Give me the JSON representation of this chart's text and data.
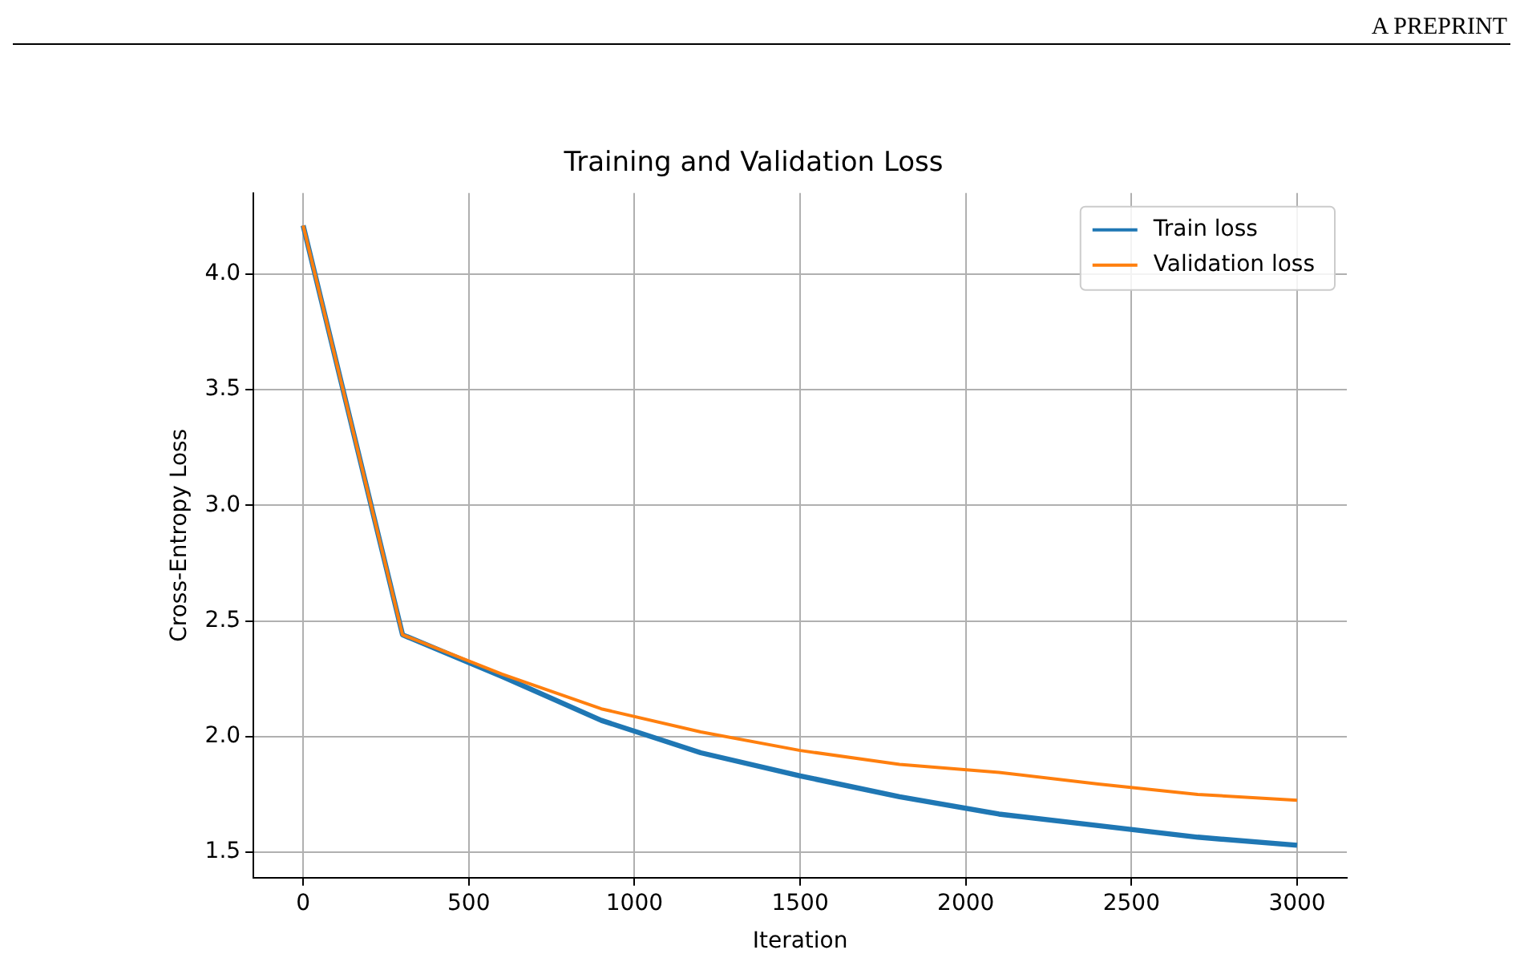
{
  "chart_data": {
    "type": "line",
    "title": "Training and Validation Loss",
    "xlabel": "Iteration",
    "ylabel": "Cross-Entropy Loss",
    "annotations": [
      "A PREPRINT"
    ],
    "x": [
      0,
      300,
      600,
      900,
      1200,
      1500,
      1800,
      2100,
      2400,
      2700,
      3000
    ],
    "series": [
      {
        "name": "Train loss",
        "color": "#1f77b4",
        "values": [
          4.21,
          2.44,
          2.26,
          2.07,
          1.93,
          1.83,
          1.74,
          1.665,
          1.615,
          1.565,
          1.53
        ]
      },
      {
        "name": "Validation loss",
        "color": "#ff7f0e",
        "values": [
          4.21,
          2.44,
          2.27,
          2.12,
          2.02,
          1.94,
          1.88,
          1.845,
          1.795,
          1.75,
          1.725
        ]
      }
    ],
    "xlim": [
      -150,
      3150
    ],
    "xticks": [
      0,
      500,
      1000,
      1500,
      2000,
      2500,
      3000
    ],
    "ylim": [
      1.39,
      4.35
    ],
    "yticks": [
      {
        "value": 1.5,
        "label": "1.5"
      },
      {
        "value": 2,
        "label": "2.0"
      },
      {
        "value": 2.5,
        "label": "2.5"
      },
      {
        "value": 3,
        "label": "3.0"
      },
      {
        "value": 3.5,
        "label": "3.5"
      },
      {
        "value": 4,
        "label": "4.0"
      }
    ],
    "grid": true,
    "legend": "top right",
    "marker": "none",
    "line_style": "solid"
  }
}
